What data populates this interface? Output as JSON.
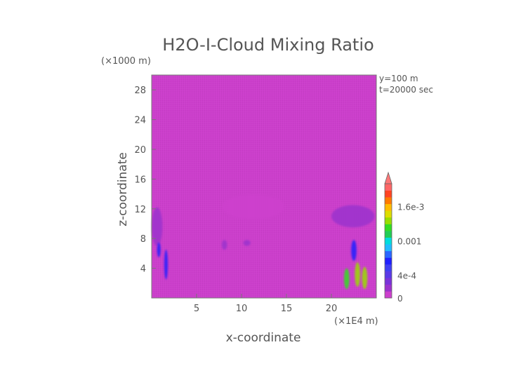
{
  "chart_data": {
    "type": "heatmap",
    "title": "H2O-I-Cloud Mixing Ratio",
    "xlabel": "x-coordinate",
    "ylabel": "z-coordinate",
    "x_multiplier": "(×1E4 m)",
    "y_multiplier": "(×1000 m)",
    "annotations": [
      "y=100 m",
      "t=20000 sec"
    ],
    "xlim": [
      0,
      25
    ],
    "ylim": [
      0,
      30
    ],
    "x_ticks": [
      5,
      10,
      15,
      20
    ],
    "y_ticks": [
      4,
      8,
      12,
      16,
      20,
      24,
      28
    ],
    "grid": false,
    "background_value": 0,
    "colorbar": {
      "range": [
        0,
        0.002
      ],
      "extend": "max",
      "tick_values": [
        0,
        0.0004,
        0.001,
        0.0016
      ],
      "tick_labels": [
        "0",
        "4e-4",
        "0.001",
        "1.6e-3"
      ],
      "colors": [
        "#cc3fcc",
        "#9b33cc",
        "#7a33d9",
        "#5a3ae6",
        "#3f3ff2",
        "#2020ff",
        "#2a66ff",
        "#22bbff",
        "#00dddd",
        "#22cc55",
        "#33dd22",
        "#99dd00",
        "#dddd00",
        "#ffbb00",
        "#ff7a00",
        "#ff4422",
        "#ff6666"
      ],
      "extend_color": "#ff7777"
    },
    "regions": [
      {
        "x": [
          0,
          1.2
        ],
        "z": [
          7,
          12.2
        ],
        "value": 0.0002
      },
      {
        "x": [
          0.6,
          1.0
        ],
        "z": [
          5.5,
          7.5
        ],
        "value": 0.0007
      },
      {
        "x": [
          1.4,
          1.8
        ],
        "z": [
          2.5,
          6.5
        ],
        "value": 0.0007
      },
      {
        "x": [
          7.8,
          14.8
        ],
        "z": [
          10.5,
          14
        ],
        "value": 6e-05
      },
      {
        "x": [
          7.8,
          8.4
        ],
        "z": [
          6.5,
          7.8
        ],
        "value": 0.0002
      },
      {
        "x": [
          10.2,
          11.0
        ],
        "z": [
          7.0,
          7.8
        ],
        "value": 0.0002
      },
      {
        "x": [
          20.0,
          24.8
        ],
        "z": [
          9.5,
          12.5
        ],
        "value": 0.0002
      },
      {
        "x": [
          22.2,
          22.8
        ],
        "z": [
          5.0,
          7.8
        ],
        "value": 0.0006
      },
      {
        "x": [
          22.6,
          23.2
        ],
        "z": [
          1.5,
          4.8
        ],
        "value": 0.0014
      },
      {
        "x": [
          23.4,
          24.0
        ],
        "z": [
          1.2,
          4.2
        ],
        "value": 0.0013
      },
      {
        "x": [
          21.4,
          22.0
        ],
        "z": [
          1.2,
          4.0
        ],
        "value": 0.0012
      }
    ]
  }
}
